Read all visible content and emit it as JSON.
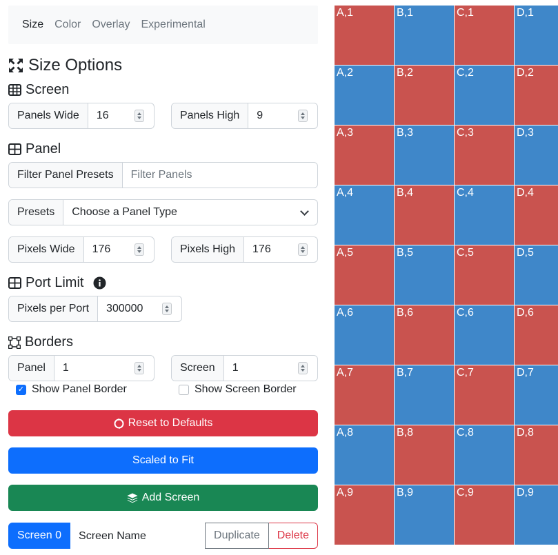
{
  "tabs": [
    {
      "label": "Size"
    },
    {
      "label": "Color"
    },
    {
      "label": "Overlay"
    },
    {
      "label": "Experimental"
    }
  ],
  "size_options": {
    "title": "Size Options"
  },
  "screen": {
    "title": "Screen",
    "panels_wide_label": "Panels Wide",
    "panels_wide_value": "16",
    "panels_high_label": "Panels High",
    "panels_high_value": "9"
  },
  "panel": {
    "title": "Panel",
    "filter_label": "Filter Panel Presets",
    "filter_placeholder": "Filter Panels",
    "presets_label": "Presets",
    "presets_value": "Choose a Panel Type",
    "pixels_wide_label": "Pixels Wide",
    "pixels_wide_value": "176",
    "pixels_high_label": "Pixels High",
    "pixels_high_value": "176"
  },
  "port_limit": {
    "title": "Port Limit",
    "pixels_per_port_label": "Pixels per Port",
    "pixels_per_port_value": "300000"
  },
  "borders": {
    "title": "Borders",
    "panel_label": "Panel",
    "panel_value": "1",
    "screen_label": "Screen",
    "screen_value": "1",
    "show_panel_border": "Show Panel Border",
    "show_panel_border_checked": true,
    "show_screen_border": "Show Screen Border",
    "show_screen_border_checked": false
  },
  "buttons": {
    "reset": "Reset to Defaults",
    "scaled": "Scaled to Fit",
    "add_screen": "Add Screen"
  },
  "bottom_bar": {
    "screen_tab": "Screen 0",
    "screen_name": "Screen Name",
    "duplicate": "Duplicate",
    "delete": "Delete"
  },
  "preview": {
    "columns": [
      "A",
      "B",
      "C",
      "D"
    ],
    "rows": [
      "1",
      "2",
      "3",
      "4",
      "5",
      "6",
      "7",
      "8",
      "9"
    ],
    "color_red": "#c9534f",
    "color_blue": "#3f87c9"
  }
}
